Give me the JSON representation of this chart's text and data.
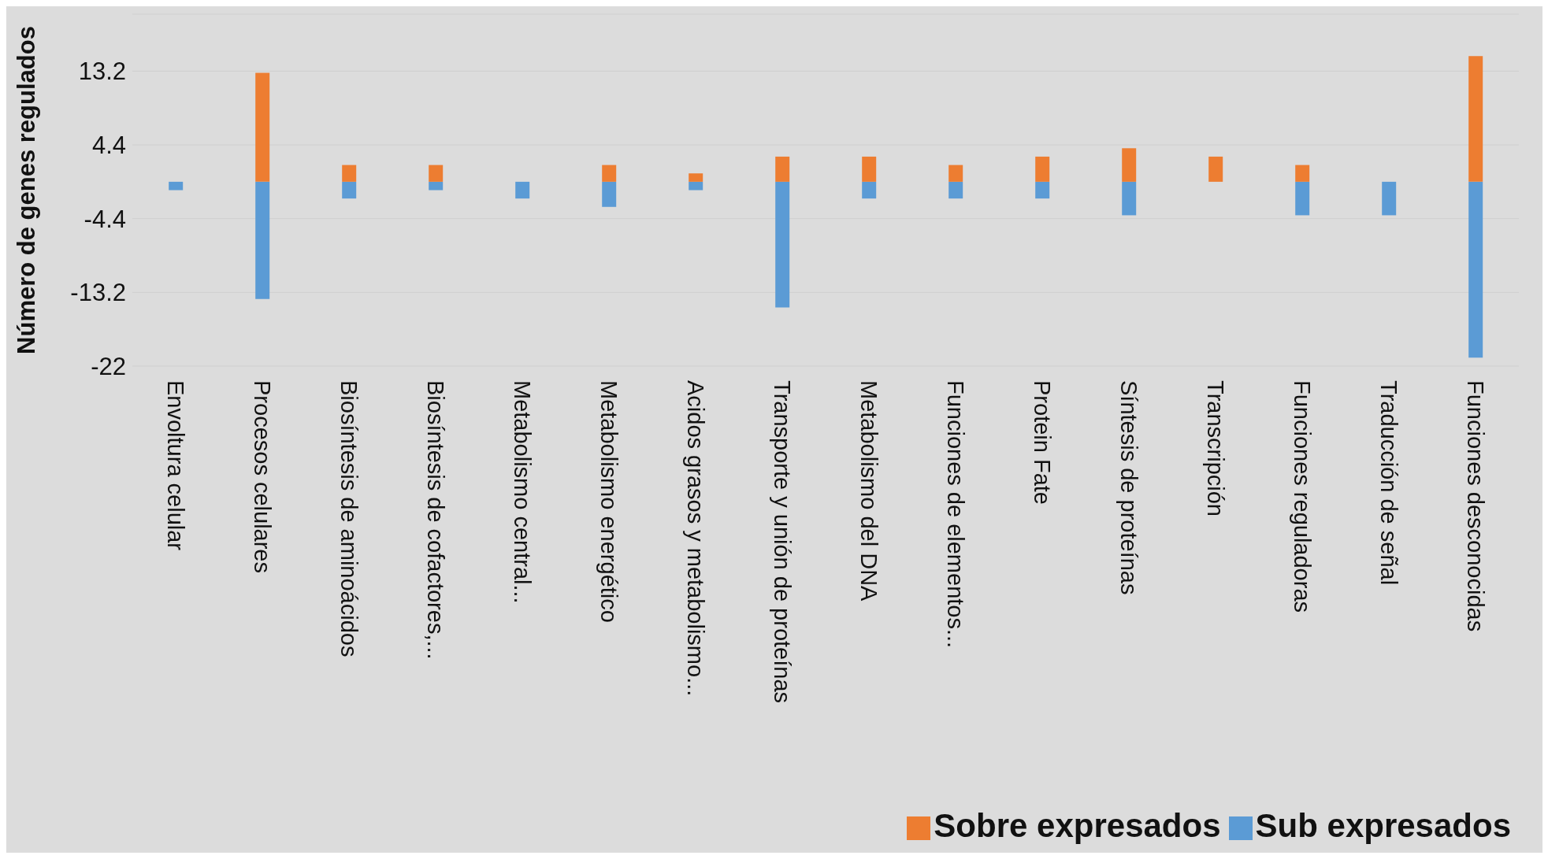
{
  "chart_data": {
    "type": "bar",
    "stacked": true,
    "ylabel": "Número de genes regulados",
    "categories": [
      "Envoltura celular",
      "Procesos celulares",
      "Biosíntesis de aminoácidos",
      "Biosíntesis de cofactores,...",
      "Metabolismo central...",
      "Metabolismo energético",
      "Acidos grasos y metabolismo...",
      "Transporte y unión de proteínas",
      "Metabolismo del DNA",
      "Funciones de elementos...",
      "Protein Fate",
      "Síntesis de proteínas",
      "Transcripción",
      "Funciones reguladoras",
      "Traducción de señal",
      "Funciones desconocidas"
    ],
    "series": [
      {
        "name": "Sub expresados",
        "color": "#5b9bd5",
        "values": [
          -1,
          -14,
          -2,
          -1,
          -2,
          -3,
          -1,
          -15,
          -2,
          -2,
          -2,
          -4,
          0,
          -4,
          -4,
          -21
        ]
      },
      {
        "name": "Sobre expresados",
        "color": "#ed7d31",
        "values": [
          0,
          13,
          2,
          2,
          0,
          2,
          1,
          3,
          3,
          2,
          3,
          4,
          3,
          2,
          0,
          15
        ]
      }
    ],
    "ylim": [
      -22,
      20
    ],
    "yticks": [
      -22,
      -13.2,
      -4.4,
      4.4,
      13.2
    ],
    "grid": "y",
    "legend": "bottom right"
  }
}
